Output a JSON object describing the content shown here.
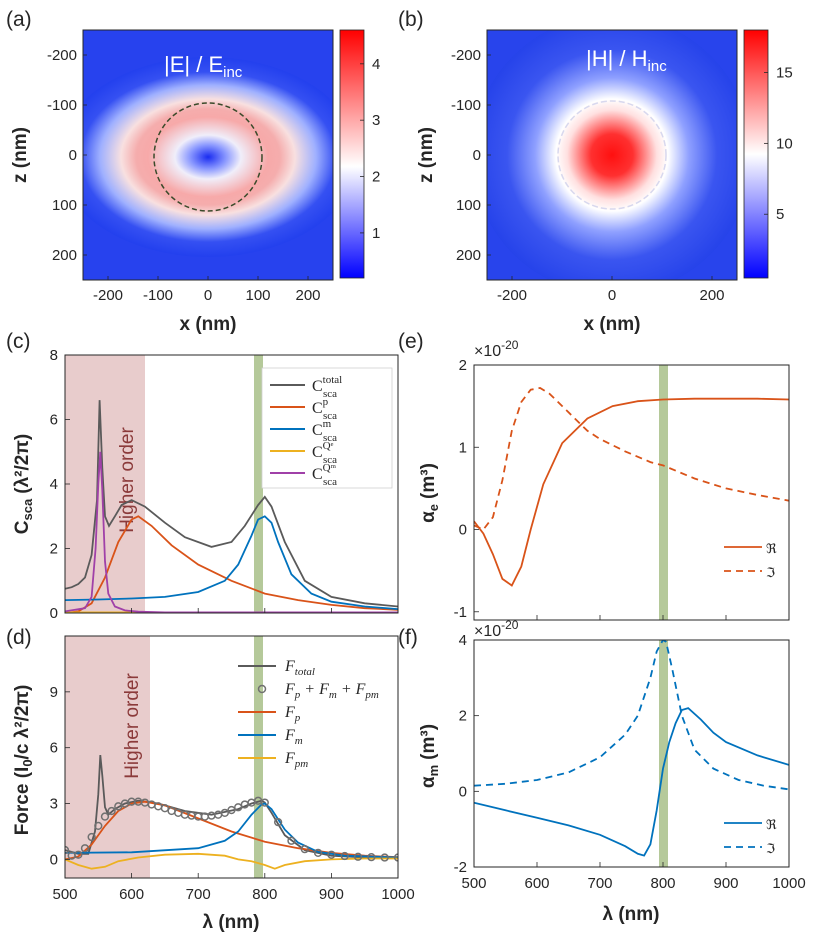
{
  "colors": {
    "total": "#5a5a5a",
    "p": "#d95319",
    "m": "#0072bd",
    "pm": "#edb120",
    "qm": "#a040a8",
    "band": "#b5c99a",
    "higher": "#e8cccc",
    "axis": "#262626"
  },
  "panels": {
    "a": {
      "label": "(a)",
      "title": "|E| / E",
      "title_sub": "inc",
      "xlabel": "x (nm)",
      "ylabel": "z (nm)",
      "xticks": [
        "-200",
        "-100",
        "0",
        "100",
        "200"
      ],
      "yticks": [
        "-200",
        "-100",
        "0",
        "100",
        "200"
      ],
      "cbar_ticks": [
        "4",
        "3",
        "2",
        "1"
      ],
      "cbar_values": [
        4,
        3,
        2,
        1
      ],
      "cbar_range": [
        0.2,
        4.6
      ]
    },
    "b": {
      "label": "(b)",
      "title": "|H| / H",
      "title_sub": "inc",
      "xlabel": "x (nm)",
      "ylabel": "z (nm)",
      "xticks": [
        "-200",
        "0",
        "200"
      ],
      "yticks": [
        "-200",
        "-100",
        "0",
        "100",
        "200"
      ],
      "cbar_ticks": [
        "15",
        "10",
        "5"
      ],
      "cbar_values": [
        15,
        10,
        5
      ],
      "cbar_range": [
        0.5,
        18
      ]
    },
    "c": {
      "label": "(c)",
      "annotation": "Higher order",
      "ylabel_main": "C",
      "ylabel_sub": "sca",
      "ylabel_units": "(λ²/2π)",
      "yticks": [
        "0",
        "2",
        "4",
        "6",
        "8"
      ],
      "legend": [
        {
          "key": "total",
          "base": "C",
          "sub": "sca",
          "sup": "total"
        },
        {
          "key": "p",
          "base": "C",
          "sub": "sca",
          "sup": "p"
        },
        {
          "key": "m",
          "base": "C",
          "sub": "sca",
          "sup": "m"
        },
        {
          "key": "pm",
          "base": "C",
          "sub": "sca",
          "sup": "Qᵉ"
        },
        {
          "key": "qm",
          "base": "C",
          "sub": "sca",
          "sup": "Qᵐ"
        }
      ]
    },
    "d": {
      "label": "(d)",
      "annotation": "Higher order",
      "ylabel": "Force (I",
      "ylabel_sub": "0",
      "ylabel_rest": "/c λ²/2π)",
      "yticks": [
        "0",
        "3",
        "6",
        "9"
      ],
      "xticks": [
        "500",
        "600",
        "700",
        "800",
        "900",
        "1000"
      ],
      "xlabel": "λ (nm)",
      "legend": [
        {
          "key": "total",
          "text": "F",
          "sub": "total"
        },
        {
          "key": "circ",
          "text": "F",
          "sub": "p",
          "rest": " + F",
          "sub2": "m",
          "rest2": " + F",
          "sub3": "pm"
        },
        {
          "key": "p",
          "text": "F",
          "sub": "p"
        },
        {
          "key": "m",
          "text": "F",
          "sub": "m"
        },
        {
          "key": "pm",
          "text": "F",
          "sub": "pm"
        }
      ]
    },
    "e": {
      "label": "(e)",
      "exponent": "×10",
      "exp_sup": "-20",
      "ylabel": "α",
      "ylabel_sub": "e",
      "ylabel_units": "(m³)",
      "yticks": [
        "-1",
        "0",
        "1",
        "2"
      ],
      "legend_re": "ℜ",
      "legend_im": "ℑ"
    },
    "f": {
      "label": "(f)",
      "exponent": "×10",
      "exp_sup": "-20",
      "ylabel": "α",
      "ylabel_sub": "m",
      "ylabel_units": "(m³)",
      "yticks": [
        "-2",
        "0",
        "2",
        "4"
      ],
      "xticks": [
        "500",
        "600",
        "700",
        "800",
        "900",
        "1000"
      ],
      "xlabel": "λ (nm)",
      "legend_re": "ℜ",
      "legend_im": "ℑ"
    }
  },
  "chart_data": [
    {
      "panel": "c",
      "type": "line",
      "title": "",
      "xlabel": "",
      "ylabel": "Csca (λ²/2π)",
      "xlim": [
        500,
        1000
      ],
      "ylim": [
        0,
        8
      ],
      "highlight_x": 800,
      "shaded_x": [
        500,
        625
      ],
      "series": [
        {
          "name": "C_sca^total",
          "color_key": "total",
          "x": [
            500,
            510,
            520,
            530,
            540,
            548,
            552,
            556,
            560,
            566,
            575,
            585,
            600,
            620,
            650,
            680,
            720,
            750,
            770,
            790,
            800,
            810,
            830,
            860,
            900,
            950,
            1000
          ],
          "y": [
            0.75,
            0.8,
            0.9,
            1.1,
            1.8,
            3.5,
            6.6,
            4.5,
            3.0,
            2.7,
            3.0,
            3.35,
            3.5,
            3.3,
            2.8,
            2.35,
            2.05,
            2.2,
            2.7,
            3.35,
            3.6,
            3.3,
            2.2,
            1.0,
            0.5,
            0.3,
            0.2
          ]
        },
        {
          "name": "C_sca^p",
          "color_key": "p",
          "x": [
            500,
            520,
            540,
            560,
            580,
            600,
            610,
            630,
            660,
            700,
            750,
            800,
            850,
            900,
            950,
            1000
          ],
          "y": [
            0.0,
            0.05,
            0.3,
            1.1,
            2.2,
            2.9,
            3.0,
            2.7,
            2.1,
            1.5,
            1.0,
            0.6,
            0.4,
            0.25,
            0.15,
            0.1
          ]
        },
        {
          "name": "C_sca^m",
          "color_key": "m",
          "x": [
            500,
            550,
            600,
            650,
            700,
            740,
            760,
            780,
            790,
            800,
            810,
            820,
            840,
            870,
            900,
            950,
            1000
          ],
          "y": [
            0.4,
            0.42,
            0.45,
            0.5,
            0.65,
            1.0,
            1.5,
            2.4,
            2.9,
            3.0,
            2.8,
            2.2,
            1.2,
            0.6,
            0.35,
            0.2,
            0.12
          ]
        },
        {
          "name": "C_sca^Qe",
          "color_key": "pm",
          "x": [
            500,
            600,
            700,
            800,
            900,
            1000
          ],
          "y": [
            0.02,
            0.02,
            0.02,
            0.02,
            0.02,
            0.02
          ]
        },
        {
          "name": "C_sca^Qm",
          "color_key": "qm",
          "x": [
            500,
            530,
            540,
            546,
            550,
            553,
            556,
            560,
            565,
            575,
            590,
            610,
            650,
            1000
          ],
          "y": [
            0.05,
            0.15,
            0.5,
            2.0,
            4.0,
            5.0,
            3.8,
            1.6,
            0.6,
            0.2,
            0.08,
            0.04,
            0.02,
            0.02
          ]
        }
      ]
    },
    {
      "panel": "d",
      "type": "line",
      "title": "",
      "xlabel": "λ (nm)",
      "ylabel": "Force (I0/c λ²/2π)",
      "xlim": [
        500,
        1000
      ],
      "ylim": [
        -1,
        12
      ],
      "highlight_x": 800,
      "shaded_x": [
        500,
        630
      ],
      "series": [
        {
          "name": "F_total",
          "color_key": "total",
          "x": [
            500,
            520,
            535,
            545,
            550,
            553,
            556,
            560,
            565,
            575,
            590,
            610,
            640,
            680,
            720,
            760,
            780,
            795,
            800,
            810,
            830,
            860,
            900,
            950,
            1000
          ],
          "y": [
            0.5,
            0.3,
            0.3,
            1.5,
            3.5,
            5.6,
            4.5,
            2.8,
            2.4,
            2.7,
            3.0,
            3.15,
            3.0,
            2.6,
            2.4,
            2.7,
            3.0,
            3.15,
            3.05,
            2.5,
            1.3,
            0.5,
            0.2,
            0.1,
            0.1
          ]
        },
        {
          "name": "F_p",
          "color_key": "p",
          "x": [
            500,
            520,
            540,
            560,
            580,
            600,
            620,
            650,
            700,
            750,
            800,
            850,
            900,
            950,
            1000
          ],
          "y": [
            0.0,
            0.15,
            0.8,
            1.8,
            2.6,
            3.0,
            3.1,
            2.9,
            2.2,
            1.5,
            0.95,
            0.6,
            0.35,
            0.2,
            0.12
          ]
        },
        {
          "name": "F_m",
          "color_key": "m",
          "x": [
            500,
            600,
            700,
            740,
            760,
            780,
            795,
            800,
            810,
            830,
            850,
            880,
            920,
            1000
          ],
          "y": [
            0.35,
            0.38,
            0.6,
            1.0,
            1.5,
            2.4,
            2.95,
            3.0,
            2.7,
            1.6,
            0.9,
            0.4,
            0.2,
            0.1
          ]
        },
        {
          "name": "F_pm",
          "color_key": "pm",
          "x": [
            500,
            520,
            540,
            560,
            580,
            610,
            650,
            700,
            740,
            760,
            780,
            800,
            815,
            830,
            860,
            900,
            950,
            1000
          ],
          "y": [
            0.0,
            -0.3,
            -0.5,
            -0.4,
            -0.1,
            0.1,
            0.25,
            0.3,
            0.2,
            0.0,
            -0.1,
            -0.3,
            -0.5,
            -0.3,
            -0.1,
            0.0,
            0.05,
            0.05
          ]
        }
      ],
      "markers": {
        "name": "F_p + F_m + F_pm",
        "x": [
          500,
          510,
          520,
          530,
          540,
          550,
          560,
          570,
          580,
          590,
          600,
          610,
          620,
          630,
          640,
          650,
          660,
          670,
          680,
          690,
          700,
          710,
          720,
          730,
          740,
          750,
          760,
          770,
          780,
          790,
          800,
          820,
          840,
          860,
          880,
          900,
          920,
          940,
          960,
          980,
          1000
        ],
        "y": [
          0.5,
          0.2,
          0.25,
          0.6,
          1.2,
          1.8,
          2.3,
          2.6,
          2.85,
          3.0,
          3.1,
          3.1,
          3.05,
          2.95,
          2.85,
          2.75,
          2.6,
          2.5,
          2.4,
          2.35,
          2.3,
          2.3,
          2.35,
          2.4,
          2.5,
          2.65,
          2.8,
          2.95,
          3.05,
          3.15,
          3.05,
          2.0,
          1.0,
          0.55,
          0.35,
          0.25,
          0.18,
          0.14,
          0.12,
          0.1,
          0.1
        ]
      }
    },
    {
      "panel": "e",
      "type": "line",
      "title": "",
      "xlabel": "",
      "ylabel": "αe (m³)",
      "xlim": [
        500,
        1000
      ],
      "ylim": [
        -1.1,
        2
      ],
      "highlight_x": 800,
      "series": [
        {
          "name": "Re",
          "color_key": "p",
          "style": "solid",
          "x": [
            500,
            515,
            530,
            545,
            560,
            575,
            590,
            610,
            640,
            680,
            720,
            760,
            800,
            850,
            900,
            950,
            1000
          ],
          "y": [
            0.1,
            -0.05,
            -0.3,
            -0.6,
            -0.68,
            -0.45,
            0.0,
            0.55,
            1.05,
            1.35,
            1.5,
            1.56,
            1.58,
            1.59,
            1.59,
            1.59,
            1.58
          ]
        },
        {
          "name": "Im",
          "color_key": "p",
          "style": "dashed",
          "x": [
            500,
            515,
            530,
            545,
            560,
            575,
            590,
            605,
            620,
            640,
            660,
            680,
            700,
            740,
            780,
            800,
            850,
            900,
            950,
            1000
          ],
          "y": [
            0.05,
            0.0,
            0.15,
            0.6,
            1.2,
            1.55,
            1.7,
            1.72,
            1.65,
            1.5,
            1.35,
            1.2,
            1.1,
            0.95,
            0.82,
            0.78,
            0.62,
            0.5,
            0.42,
            0.35
          ]
        }
      ]
    },
    {
      "panel": "f",
      "type": "line",
      "title": "",
      "xlabel": "λ (nm)",
      "ylabel": "αm (m³)",
      "xlim": [
        500,
        1000
      ],
      "ylim": [
        -2,
        4
      ],
      "highlight_x": 800,
      "series": [
        {
          "name": "Re",
          "color_key": "m",
          "style": "solid",
          "x": [
            500,
            550,
            600,
            650,
            700,
            740,
            760,
            770,
            780,
            790,
            800,
            810,
            820,
            830,
            840,
            860,
            880,
            900,
            950,
            1000
          ],
          "y": [
            -0.3,
            -0.5,
            -0.7,
            -0.9,
            -1.15,
            -1.45,
            -1.65,
            -1.7,
            -1.4,
            -0.5,
            0.6,
            1.3,
            1.8,
            2.15,
            2.2,
            1.9,
            1.55,
            1.3,
            0.95,
            0.7
          ]
        },
        {
          "name": "Im",
          "color_key": "m",
          "style": "dashed",
          "x": [
            500,
            550,
            600,
            650,
            700,
            740,
            760,
            780,
            790,
            800,
            805,
            815,
            830,
            850,
            880,
            920,
            960,
            1000
          ],
          "y": [
            0.15,
            0.2,
            0.3,
            0.5,
            0.9,
            1.5,
            2.0,
            3.0,
            3.7,
            4.0,
            3.95,
            3.2,
            2.0,
            1.1,
            0.6,
            0.3,
            0.15,
            0.05
          ]
        }
      ]
    }
  ]
}
